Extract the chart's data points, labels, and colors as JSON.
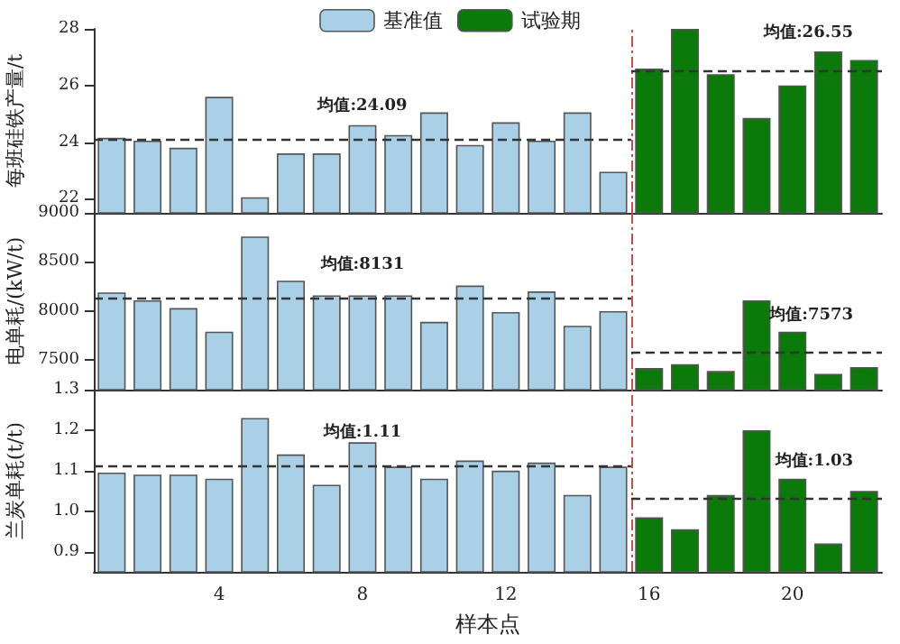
{
  "chart_data": [
    {
      "type": "bar",
      "ylabel": "每班硅铁产量/t",
      "legend": "top",
      "tick_labels": "y",
      "xlim": [
        0.5,
        22.5
      ],
      "xticks": [
        4,
        8,
        12,
        16,
        20
      ],
      "ylim": [
        21.5,
        28
      ],
      "yticks": [
        22,
        24,
        26,
        28
      ],
      "series": [
        {
          "name": "基准值",
          "color": "#a9d0e6",
          "x": [
            1,
            2,
            3,
            4,
            5,
            6,
            7,
            8,
            9,
            10,
            11,
            12,
            13,
            14,
            15
          ],
          "values": [
            24.15,
            24.05,
            23.8,
            25.6,
            22.05,
            23.6,
            23.6,
            24.6,
            24.25,
            25.05,
            23.9,
            24.7,
            24.05,
            25.05,
            22.95
          ]
        },
        {
          "name": "试验期",
          "color": "#0b7a0b",
          "x": [
            16,
            17,
            18,
            19,
            20,
            21,
            22
          ],
          "values": [
            26.6,
            28.0,
            26.4,
            24.85,
            26.0,
            27.2,
            26.9
          ]
        }
      ],
      "ref_lines": [
        {
          "axis": "y",
          "value": 24.09,
          "label": "均值:24.09",
          "line_style": "dashed",
          "color": "#333333"
        },
        {
          "axis": "y",
          "value": 26.55,
          "label": "均值:26.55",
          "line_style": "dashed",
          "color": "#333333"
        },
        {
          "axis": "x",
          "value": 15.5,
          "line_style": "dashed",
          "color": "#c0504d"
        }
      ]
    },
    {
      "type": "bar",
      "ylabel": "电单耗/(kW/t)",
      "tick_labels": "y",
      "xlim": [
        0.5,
        22.5
      ],
      "xticks": [
        4,
        8,
        12,
        16,
        20
      ],
      "ylim": [
        7200,
        9000
      ],
      "yticks": [
        7500,
        8000,
        8500,
        9000
      ],
      "series": [
        {
          "color": "#a9d0e6",
          "x": [
            1,
            2,
            3,
            4,
            5,
            6,
            7,
            8,
            9,
            10,
            11,
            12,
            13,
            14,
            15
          ],
          "values": [
            8190,
            8110,
            8030,
            7790,
            8760,
            8310,
            8160,
            8160,
            8160,
            7890,
            8260,
            7990,
            8200,
            7850,
            8000
          ]
        },
        {
          "color": "#0b7a0b",
          "x": [
            16,
            17,
            18,
            19,
            20,
            21,
            22
          ],
          "values": [
            7420,
            7460,
            7390,
            8110,
            7790,
            7360,
            7430
          ]
        }
      ],
      "ref_lines": [
        {
          "axis": "y",
          "value": 8131,
          "label": "均值:8131",
          "line_style": "dashed",
          "color": "#333333"
        },
        {
          "axis": "y",
          "value": 7573,
          "label": "均值:7573",
          "line_style": "dashed",
          "color": "#333333"
        },
        {
          "axis": "x",
          "value": 15.5,
          "line_style": "dashed",
          "color": "#c0504d"
        }
      ]
    },
    {
      "type": "bar",
      "ylabel": "兰炭单耗(t/t)",
      "xlabel": "样本点",
      "xlim": [
        0.5,
        22.5
      ],
      "xticks": [
        4,
        8,
        12,
        16,
        20
      ],
      "ylim": [
        0.85,
        1.3
      ],
      "yticks": [
        {
          "value": 0.9,
          "label": "0.9"
        },
        {
          "value": 1.0,
          "label": "1.0"
        },
        {
          "value": 1.1,
          "label": "1.1"
        },
        {
          "value": 1.2,
          "label": "1.2"
        },
        {
          "value": 1.3,
          "label": "1.3"
        }
      ],
      "series": [
        {
          "color": "#a9d0e6",
          "x": [
            1,
            2,
            3,
            4,
            5,
            6,
            7,
            8,
            9,
            10,
            11,
            12,
            13,
            14,
            15
          ],
          "values": [
            1.095,
            1.09,
            1.09,
            1.08,
            1.23,
            1.14,
            1.065,
            1.17,
            1.11,
            1.08,
            1.125,
            1.1,
            1.12,
            1.04,
            1.11
          ]
        },
        {
          "color": "#0b7a0b",
          "x": [
            16,
            17,
            18,
            19,
            20,
            21,
            22
          ],
          "values": [
            0.985,
            0.955,
            1.04,
            1.2,
            1.08,
            0.92,
            1.05
          ]
        }
      ],
      "ref_lines": [
        {
          "axis": "y",
          "value": 1.11,
          "label": "均值:1.11",
          "line_style": "dashed",
          "color": "#333333"
        },
        {
          "axis": "y",
          "value": 1.03,
          "label": "均值:1.03",
          "line_style": "dashed",
          "color": "#333333"
        },
        {
          "axis": "x",
          "value": 15.5,
          "line_style": "dashed",
          "color": "#c0504d"
        }
      ]
    }
  ]
}
